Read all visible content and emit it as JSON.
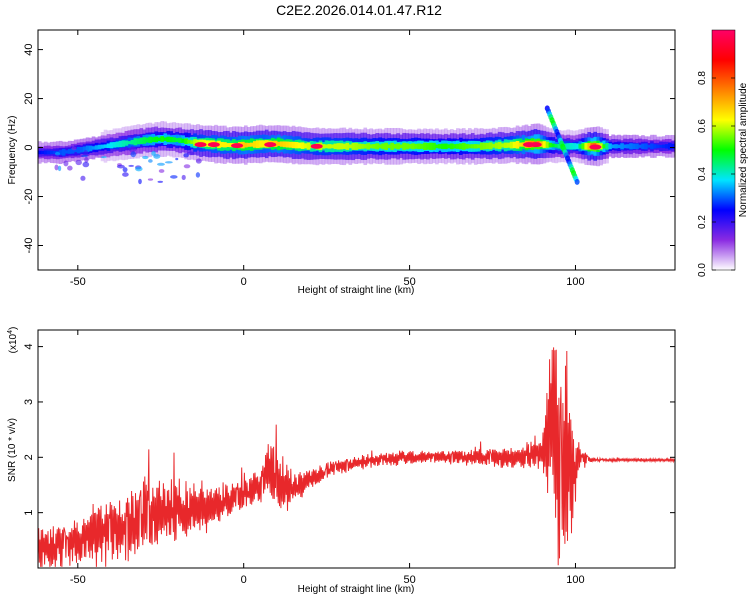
{
  "title": "C2E2.2026.014.01.47.R12",
  "chart_data": [
    {
      "type": "heatmap",
      "xlabel": "Height of straight line (km)",
      "ylabel": "Frequency (Hz)",
      "xlim": [
        -62,
        130
      ],
      "ylim": [
        -50,
        48
      ],
      "xticks": [
        -50,
        0,
        50,
        100
      ],
      "yticks": [
        -40,
        -20,
        0,
        20,
        40
      ],
      "xtick_labels": [
        "-50",
        "0",
        "50",
        "100"
      ],
      "ytick_labels": [
        "-40",
        "-20",
        "0",
        "20",
        "40"
      ],
      "colorbar": {
        "label": "Normalized spectral amplitude",
        "range": [
          0.0,
          1.0
        ],
        "ticks": [
          0.0,
          0.2,
          0.4,
          0.6,
          0.8
        ],
        "tick_labels": [
          "0.0",
          "0.2",
          "0.4",
          "0.6",
          "0.8"
        ],
        "colormap": [
          "#ffffff",
          "#8a2be2",
          "#0000ff",
          "#00e5ff",
          "#00ff00",
          "#ffff00",
          "#ff8000",
          "#ff0000",
          "#ff0066"
        ]
      },
      "ridge": {
        "x": [
          -62,
          -55,
          -50,
          -45,
          -40,
          -35,
          -30,
          -25,
          -20,
          -15,
          -10,
          -5,
          0,
          5,
          10,
          20,
          30,
          40,
          50,
          60,
          70,
          80,
          88,
          92,
          95,
          100,
          105,
          110,
          120,
          130
        ],
        "y": [
          -2,
          -2,
          -1,
          0,
          1,
          2,
          3,
          3.5,
          3,
          2,
          1.5,
          1,
          1,
          1.5,
          1.5,
          0.5,
          0.5,
          0.5,
          0.5,
          0.5,
          0.5,
          1,
          1.5,
          1,
          0.5,
          0.5,
          0.5,
          0.5,
          0.5,
          0.5
        ],
        "amplitude": [
          0.3,
          0.35,
          0.35,
          0.4,
          0.45,
          0.5,
          0.55,
          0.6,
          0.55,
          0.7,
          0.75,
          0.75,
          0.8,
          0.75,
          0.8,
          0.7,
          0.7,
          0.65,
          0.65,
          0.6,
          0.65,
          0.7,
          0.9,
          0.6,
          0.5,
          0.45,
          0.95,
          0.4,
          0.35,
          0.3
        ],
        "hotspots": [
          [
            -13,
            1.2
          ],
          [
            -9,
            1.2
          ],
          [
            -2,
            0.8
          ],
          [
            8,
            1.2
          ],
          [
            22,
            0.5
          ],
          [
            86,
            1.2
          ],
          [
            88,
            1.2
          ],
          [
            106,
            0.2
          ]
        ]
      }
    },
    {
      "type": "line",
      "xlabel": "Height of straight line (km)",
      "ylabel": "SNR (10 * v/v)",
      "y_multiplier": "(x10",
      "y_exponent": "4",
      "multiplier_close": ")",
      "xlim": [
        -62,
        130
      ],
      "ylim": [
        0,
        4.3
      ],
      "xticks": [
        -50,
        0,
        50,
        100
      ],
      "yticks": [
        1,
        2,
        3,
        4
      ],
      "xtick_labels": [
        "-50",
        "0",
        "50",
        "100"
      ],
      "ytick_labels": [
        "1",
        "2",
        "3",
        "4"
      ],
      "color": "#e8282b",
      "series": [
        {
          "x": [
            -62,
            -55,
            -50,
            -45,
            -40,
            -35,
            -30,
            -25,
            -20,
            -15,
            -10,
            -5,
            0,
            5,
            8,
            10,
            12,
            15,
            20,
            25,
            30,
            35,
            40,
            50,
            60,
            70,
            80,
            85,
            90,
            93,
            95,
            97,
            99,
            101,
            105,
            110,
            120,
            130
          ],
          "y": [
            0.3,
            0.4,
            0.5,
            0.6,
            0.7,
            0.8,
            0.9,
            0.95,
            1.0,
            1.05,
            1.1,
            1.2,
            1.3,
            1.5,
            1.8,
            1.6,
            1.5,
            1.4,
            1.6,
            1.75,
            1.85,
            1.9,
            1.95,
            2.0,
            2.0,
            2.0,
            2.0,
            2.05,
            2.1,
            2.6,
            1.8,
            2.1,
            1.4,
            2.0,
            1.95,
            1.95,
            1.95,
            1.95
          ],
          "noise": [
            0.3,
            0.35,
            0.4,
            0.45,
            0.5,
            0.5,
            0.5,
            0.5,
            0.45,
            0.4,
            0.35,
            0.25,
            0.2,
            0.25,
            0.5,
            0.5,
            0.35,
            0.25,
            0.15,
            0.12,
            0.1,
            0.1,
            0.1,
            0.1,
            0.1,
            0.12,
            0.15,
            0.2,
            0.3,
            1.4,
            2.0,
            1.6,
            0.9,
            0.2,
            0.03,
            0.02,
            0.02,
            0.02
          ]
        }
      ]
    }
  ]
}
